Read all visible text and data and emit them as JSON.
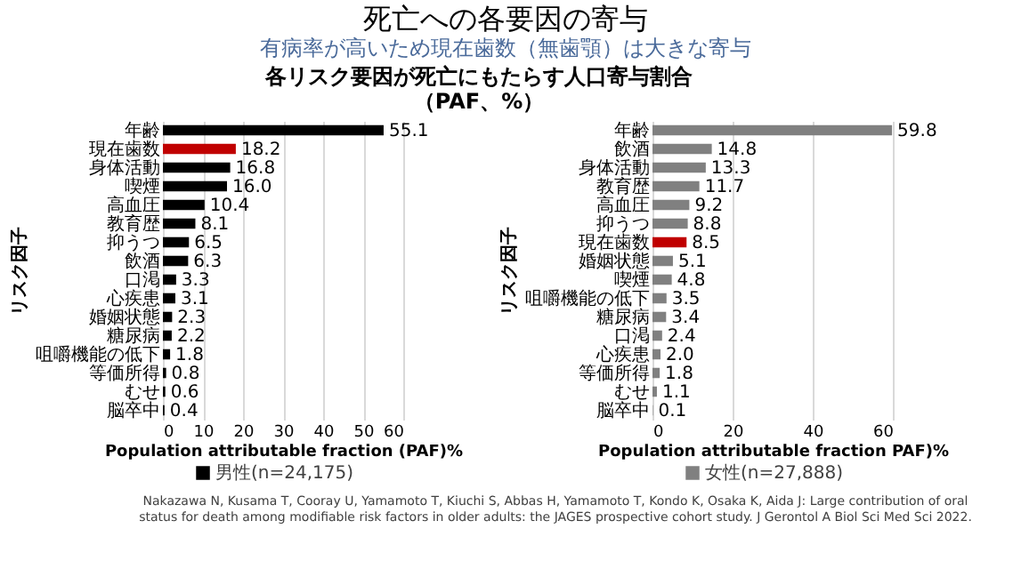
{
  "chart_data": [
    {
      "type": "bar",
      "orientation": "horizontal",
      "title": "死亡への各要因の寄与",
      "subtitle": "有病率が高いため現在歯数（無歯顎）は大きな寄与",
      "annotations": [
        "各リスク要因が死亡にもたらす人口寄与割合",
        "（PAF、%）"
      ],
      "categories": [
        "年齢",
        "現在歯数",
        "身体活動",
        "喫煙",
        "高血圧",
        "教育歴",
        "抑うつ",
        "飲酒",
        "口渇",
        "心疾患",
        "婚姻状態",
        "糖尿病",
        "咀嚼機能の低下",
        "等価所得",
        "むせ",
        "脳卒中"
      ],
      "series": [
        {
          "name": "男性(n=24,175)",
          "color": "#000000",
          "colors": [
            "#000000",
            "#c00000",
            "#000000",
            "#000000",
            "#000000",
            "#000000",
            "#000000",
            "#000000",
            "#000000",
            "#000000",
            "#000000",
            "#000000",
            "#000000",
            "#000000",
            "#000000",
            "#000000"
          ],
          "values": [
            55.1,
            18.2,
            16.8,
            16.0,
            10.4,
            8.1,
            6.5,
            6.3,
            3.3,
            3.1,
            2.3,
            2.2,
            1.8,
            0.8,
            0.6,
            0.4
          ],
          "value_labels": [
            "55.1",
            "18.2",
            "16.8",
            "16.0",
            "10.4",
            "8.1",
            "6.5",
            "6.3",
            "3.3",
            "3.1",
            "2.3",
            "2.2",
            "1.8",
            "0.8",
            "0.6",
            "0.4"
          ]
        }
      ],
      "xlim": [
        0,
        60
      ],
      "xticks": [
        0,
        10,
        20,
        30,
        40,
        50,
        60
      ],
      "grid": "x",
      "legend": "bottom",
      "ylabel": "リスク因子",
      "xlabel": "Population attributable fraction (PAF)%"
    },
    {
      "type": "bar",
      "orientation": "horizontal",
      "annotations": [
        "Nakazawa N, Kusama T, Cooray U, Yamamoto T, Kiuchi S, Abbas H, Yamamoto T, Kondo K, Osaka K, Aida J: Large contribution of oral",
        "status for death among modifiable risk factors in older adults: the JAGES prospective cohort study. J Gerontol A Biol Sci Med Sci 2022."
      ],
      "categories": [
        "年齢",
        "飲酒",
        "身体活動",
        "教育歴",
        "高血圧",
        "抑うつ",
        "現在歯数",
        "婚姻状態",
        "喫煙",
        "咀嚼機能の低下",
        "糖尿病",
        "口渇",
        "心疾患",
        "等価所得",
        "むせ",
        "脳卒中"
      ],
      "series": [
        {
          "name": "女性(n=27,888)",
          "color": "#808080",
          "colors": [
            "#808080",
            "#808080",
            "#808080",
            "#808080",
            "#808080",
            "#808080",
            "#c00000",
            "#808080",
            "#808080",
            "#808080",
            "#808080",
            "#808080",
            "#808080",
            "#808080",
            "#808080",
            "#808080"
          ],
          "values": [
            59.8,
            14.8,
            13.3,
            11.7,
            9.2,
            8.8,
            8.5,
            5.1,
            4.8,
            3.5,
            3.4,
            2.4,
            2.0,
            1.8,
            1.1,
            0.1
          ],
          "value_labels": [
            "59.8",
            "14.8",
            "13.3",
            "11.7",
            "9.2",
            "8.8",
            "8.5",
            "5.1",
            "4.8",
            "3.5",
            "3.4",
            "2.4",
            "2.0",
            "1.8",
            "1.1",
            "0.1"
          ]
        }
      ],
      "xlim": [
        0,
        60
      ],
      "xticks": [
        0,
        20,
        40,
        60
      ],
      "grid": "x",
      "legend": "bottom",
      "ylabel": "リスク因子",
      "xlabel": "Population attributable fraction PAF)%"
    }
  ]
}
